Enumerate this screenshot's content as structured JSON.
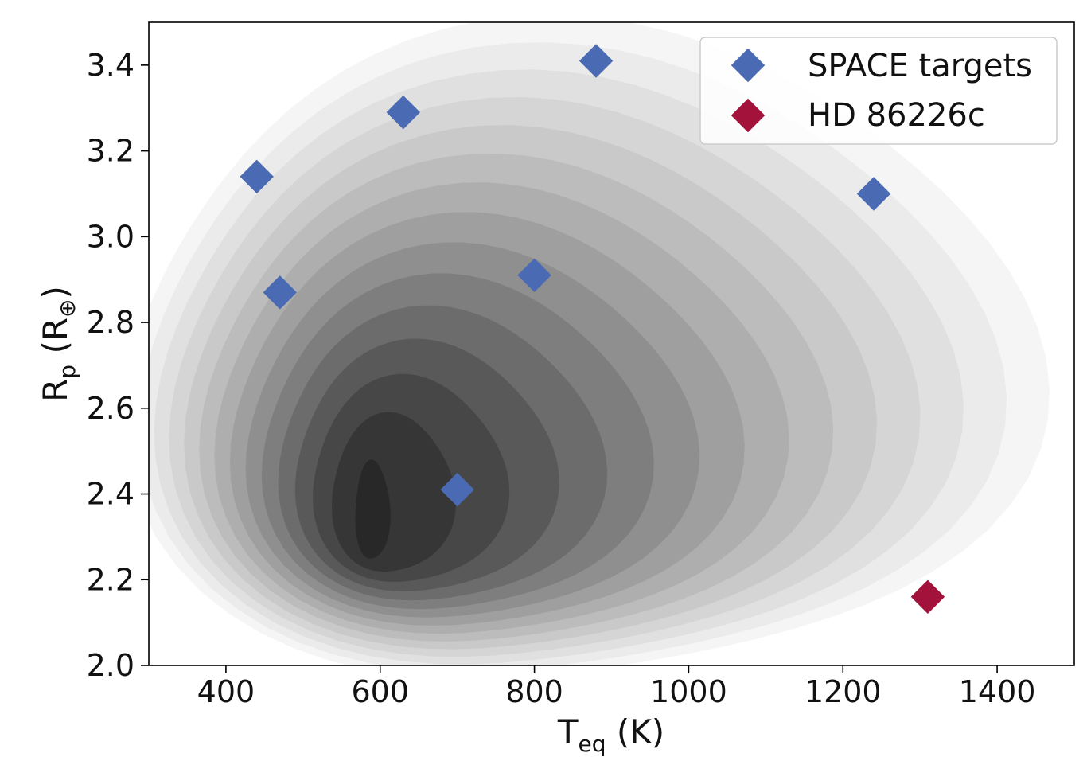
{
  "chart_data": {
    "type": "scatter",
    "background": "kde-density-contours",
    "xlabel": {
      "main": "T",
      "sub": "eq",
      "rest": " (K)"
    },
    "ylabel": {
      "main": "R",
      "sub": "p",
      "rest": " (R",
      "sym": "⊕",
      "close": ")"
    },
    "xlim": [
      300,
      1500
    ],
    "ylim": [
      2.0,
      3.5
    ],
    "xticks": [
      400,
      600,
      800,
      1000,
      1200,
      1400
    ],
    "yticks": [
      "2.0",
      "2.2",
      "2.4",
      "2.6",
      "2.8",
      "3.0",
      "3.2",
      "3.4"
    ],
    "grid": false,
    "legend_position": "top-right",
    "density_peak": {
      "x": 590,
      "y": 2.36
    },
    "density_colors": [
      "#f5f5f5",
      "#ebebeb",
      "#e0e0e0",
      "#d5d5d5",
      "#c9c9c9",
      "#bcbcbc",
      "#aeaeae",
      "#9f9f9f",
      "#8f8f8f",
      "#7e7e7e",
      "#6c6c6c",
      "#595959",
      "#474747",
      "#363636",
      "#282828"
    ],
    "series": [
      {
        "name": "SPACE targets",
        "color": "#4a6bb4",
        "marker": "diamond",
        "points": [
          {
            "x": 440,
            "y": 3.14
          },
          {
            "x": 470,
            "y": 2.87
          },
          {
            "x": 630,
            "y": 3.29
          },
          {
            "x": 700,
            "y": 2.41
          },
          {
            "x": 800,
            "y": 2.91
          },
          {
            "x": 880,
            "y": 3.41
          },
          {
            "x": 1240,
            "y": 3.1
          }
        ]
      },
      {
        "name": "HD 86226c",
        "color": "#a3123a",
        "marker": "diamond",
        "points": [
          {
            "x": 1310,
            "y": 2.16
          }
        ]
      }
    ]
  }
}
